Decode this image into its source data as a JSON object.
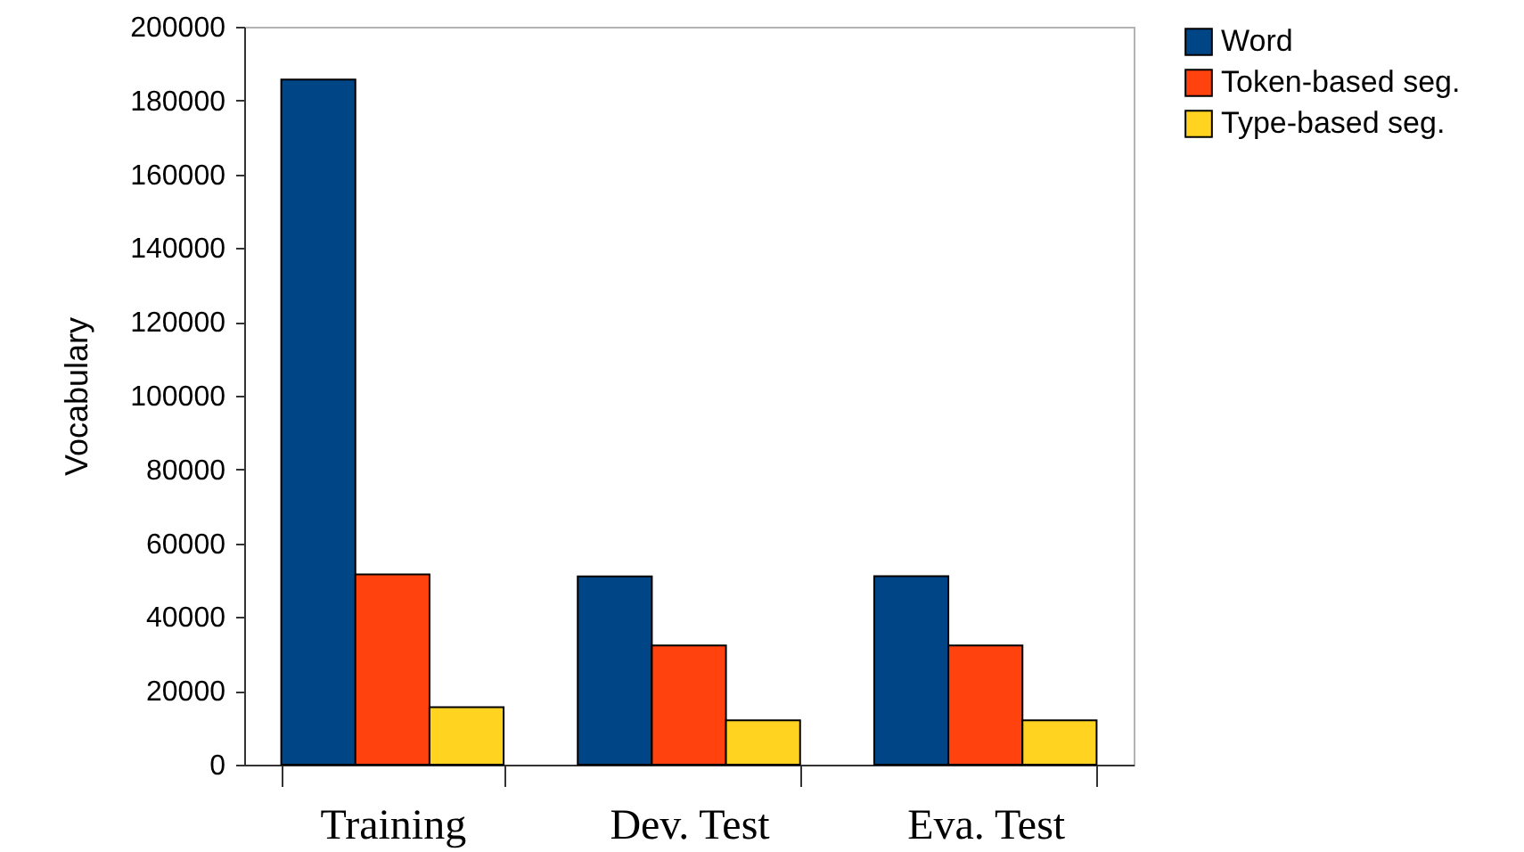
{
  "chart_data": {
    "type": "bar",
    "ylabel": "Vocabulary",
    "categories": [
      "Training",
      "Dev. Test",
      "Eva. Test"
    ],
    "series": [
      {
        "name": "Word",
        "color": "#004586",
        "values": [
          185700,
          51000,
          51100
        ]
      },
      {
        "name": "Token-based seg.",
        "color": "#ff420e",
        "values": [
          51600,
          32300,
          32300
        ]
      },
      {
        "name": "Type-based seg.",
        "color": "#ffd320",
        "values": [
          15600,
          12000,
          12000
        ]
      }
    ],
    "ylim": [
      0,
      200000
    ],
    "yticks": [
      0,
      20000,
      40000,
      60000,
      80000,
      100000,
      120000,
      140000,
      160000,
      180000,
      200000
    ],
    "grid": false,
    "legend": "right"
  }
}
